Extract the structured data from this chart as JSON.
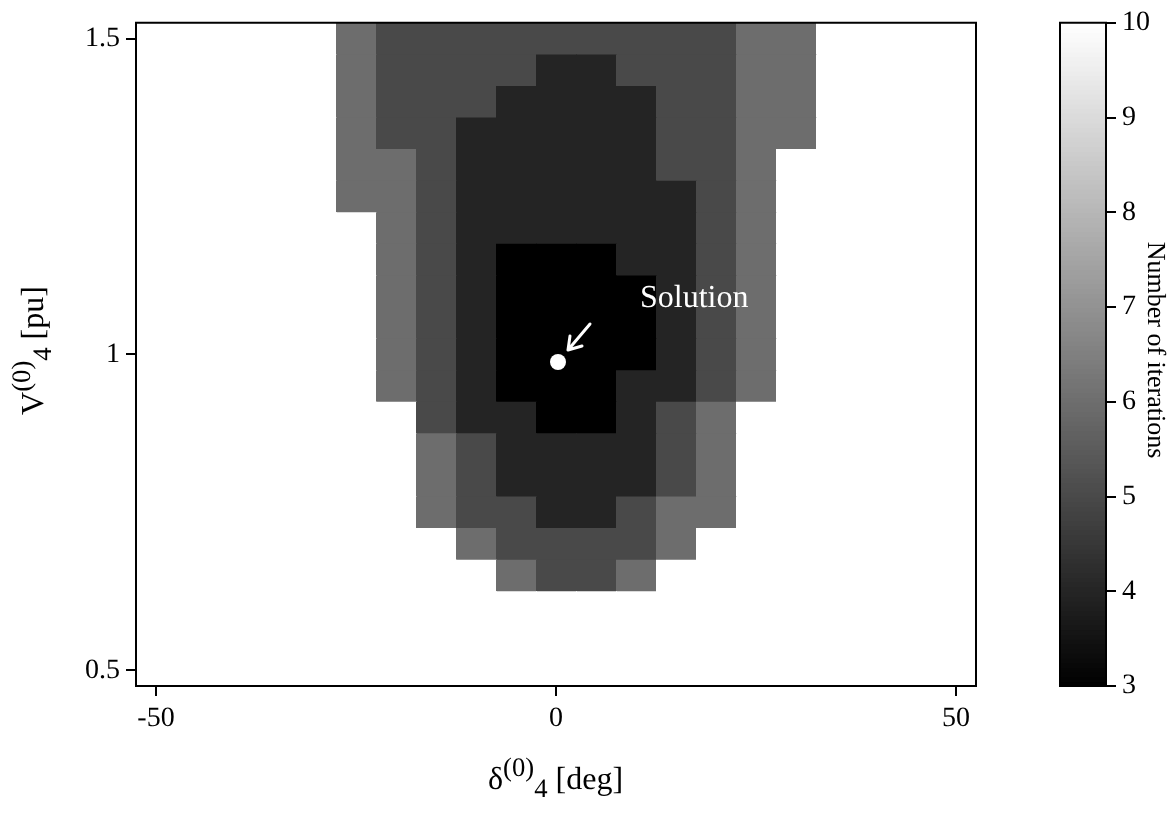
{
  "chart_data": {
    "type": "heatmap",
    "xlabel": "δ$^{(0)}$$_{4}$ [deg]",
    "ylabel": "V$^{(0)}$$_{4}$ [pu]",
    "clabel": "Number of iterations",
    "categories": [
      "-50",
      null,
      null,
      null,
      null,
      null,
      null,
      null,
      null,
      null,
      "0",
      null,
      null,
      null,
      null,
      null,
      null,
      null,
      null,
      null,
      "50"
    ],
    "y_categories": [
      "1.5",
      null,
      null,
      null,
      null,
      null,
      null,
      null,
      null,
      null,
      "1",
      null,
      null,
      null,
      null,
      null,
      null,
      null,
      null,
      null,
      "0.5"
    ],
    "clim": [
      3,
      10
    ],
    "cticks": [
      3,
      4,
      5,
      6,
      7,
      8,
      9,
      10
    ],
    "cells": [
      [
        10,
        10,
        10,
        10,
        10,
        6,
        5,
        5,
        5,
        5,
        5,
        5,
        5,
        5,
        5,
        6,
        6,
        10,
        10,
        10,
        10
      ],
      [
        10,
        10,
        10,
        10,
        10,
        6,
        5,
        5,
        5,
        5,
        4,
        4,
        5,
        5,
        5,
        6,
        6,
        10,
        10,
        10,
        10
      ],
      [
        10,
        10,
        10,
        10,
        10,
        6,
        5,
        5,
        5,
        4,
        4,
        4,
        4,
        5,
        5,
        6,
        6,
        10,
        10,
        10,
        10
      ],
      [
        10,
        10,
        10,
        10,
        10,
        6,
        5,
        5,
        4,
        4,
        4,
        4,
        4,
        5,
        5,
        6,
        6,
        10,
        10,
        10,
        10
      ],
      [
        10,
        10,
        10,
        10,
        10,
        6,
        6,
        5,
        4,
        4,
        4,
        4,
        4,
        5,
        5,
        6,
        10,
        10,
        10,
        10,
        10
      ],
      [
        10,
        10,
        10,
        10,
        10,
        6,
        6,
        5,
        4,
        4,
        4,
        4,
        4,
        4,
        5,
        6,
        10,
        10,
        10,
        10,
        10
      ],
      [
        10,
        10,
        10,
        10,
        10,
        10,
        6,
        5,
        4,
        4,
        4,
        4,
        4,
        4,
        5,
        6,
        10,
        10,
        10,
        10,
        10
      ],
      [
        10,
        10,
        10,
        10,
        10,
        10,
        6,
        5,
        4,
        3,
        3,
        3,
        4,
        4,
        5,
        6,
        10,
        10,
        10,
        10,
        10
      ],
      [
        10,
        10,
        10,
        10,
        10,
        10,
        6,
        5,
        4,
        3,
        3,
        3,
        3,
        4,
        5,
        6,
        10,
        10,
        10,
        10,
        10
      ],
      [
        10,
        10,
        10,
        10,
        10,
        10,
        6,
        5,
        4,
        3,
        3,
        3,
        3,
        4,
        5,
        6,
        10,
        10,
        10,
        10,
        10
      ],
      [
        10,
        10,
        10,
        10,
        10,
        10,
        6,
        5,
        4,
        3,
        3,
        3,
        3,
        4,
        5,
        6,
        10,
        10,
        10,
        10,
        10
      ],
      [
        10,
        10,
        10,
        10,
        10,
        10,
        6,
        5,
        4,
        3,
        3,
        3,
        4,
        4,
        5,
        6,
        10,
        10,
        10,
        10,
        10
      ],
      [
        10,
        10,
        10,
        10,
        10,
        10,
        10,
        5,
        4,
        4,
        3,
        3,
        4,
        5,
        6,
        10,
        10,
        10,
        10,
        10,
        10
      ],
      [
        10,
        10,
        10,
        10,
        10,
        10,
        10,
        6,
        5,
        4,
        4,
        4,
        4,
        5,
        6,
        10,
        10,
        10,
        10,
        10,
        10
      ],
      [
        10,
        10,
        10,
        10,
        10,
        10,
        10,
        6,
        5,
        4,
        4,
        4,
        4,
        5,
        6,
        10,
        10,
        10,
        10,
        10,
        10
      ],
      [
        10,
        10,
        10,
        10,
        10,
        10,
        10,
        6,
        5,
        5,
        4,
        4,
        5,
        6,
        6,
        10,
        10,
        10,
        10,
        10,
        10
      ],
      [
        10,
        10,
        10,
        10,
        10,
        10,
        10,
        10,
        6,
        5,
        5,
        5,
        5,
        6,
        10,
        10,
        10,
        10,
        10,
        10,
        10
      ],
      [
        10,
        10,
        10,
        10,
        10,
        10,
        10,
        10,
        10,
        6,
        5,
        5,
        6,
        10,
        10,
        10,
        10,
        10,
        10,
        10,
        10
      ],
      [
        10,
        10,
        10,
        10,
        10,
        10,
        10,
        10,
        10,
        10,
        10,
        10,
        10,
        10,
        10,
        10,
        10,
        10,
        10,
        10,
        10
      ],
      [
        10,
        10,
        10,
        10,
        10,
        10,
        10,
        10,
        10,
        10,
        10,
        10,
        10,
        10,
        10,
        10,
        10,
        10,
        10,
        10,
        10
      ],
      [
        10,
        10,
        10,
        10,
        10,
        10,
        10,
        10,
        10,
        10,
        10,
        10,
        10,
        10,
        10,
        10,
        10,
        10,
        10,
        10,
        10
      ]
    ],
    "annotations": [
      "Solution"
    ]
  }
}
